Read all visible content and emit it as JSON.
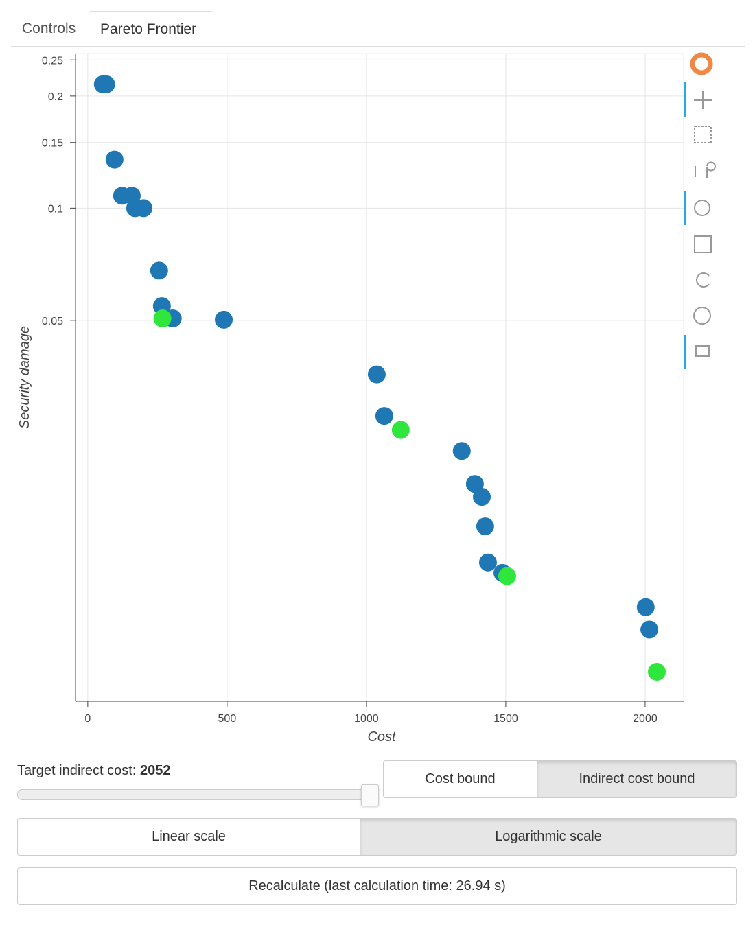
{
  "tabs": [
    "Controls",
    "Pareto Frontier"
  ],
  "chart_data": {
    "type": "scatter",
    "x_label": "Cost",
    "y_label": "Security damage",
    "xlim": [
      -44,
      2138
    ],
    "xticks": [
      0,
      500,
      1000,
      1500,
      2000
    ],
    "ylim": [
      0.00475,
      0.26
    ],
    "yticks": [
      0.25,
      0.2,
      0.15,
      0.1,
      0.05
    ],
    "log_y": true,
    "grid": true,
    "series": [
      {
        "color": "#1f77b4",
        "x": [
          54,
          66,
          96,
          123,
          158,
          170,
          200,
          256,
          266,
          305,
          488,
          1037,
          1064,
          1342,
          1389,
          1414,
          1426,
          1436,
          1488,
          2002,
          2015
        ],
        "values": [
          0.215,
          0.215,
          0.135,
          0.108,
          0.108,
          0.1,
          0.1,
          0.068,
          0.0546,
          0.0506,
          0.0502,
          0.0358,
          0.0277,
          0.0223,
          0.0182,
          0.0168,
          0.014,
          0.0112,
          0.0105,
          0.0085,
          0.0074
        ]
      },
      {
        "color": "#2ee63c",
        "x": [
          268,
          1123,
          1505,
          2042
        ],
        "values": [
          0.0506,
          0.0254,
          0.0103,
          0.0057
        ]
      }
    ]
  },
  "controls": {
    "slider_label": "Target indirect cost:",
    "slider_value": 2052,
    "bound_buttons": [
      "Cost bound",
      "Indirect cost bound"
    ],
    "scale_buttons": [
      "Linear scale",
      "Logarithmic scale"
    ],
    "recalculate": "Recalculate (last calculation time: 26.94 s)"
  }
}
